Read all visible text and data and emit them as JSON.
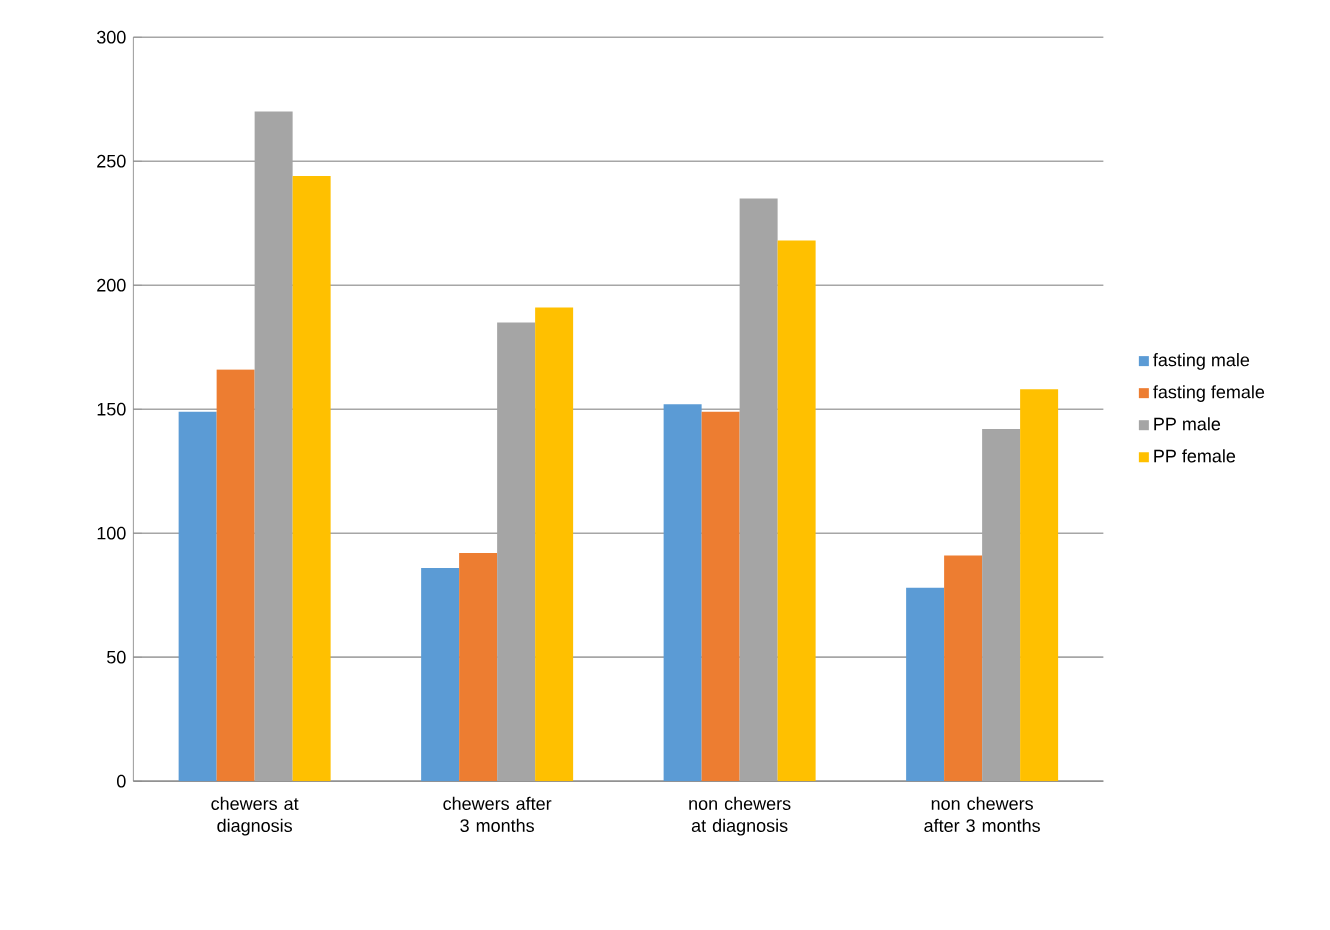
{
  "chart_data": {
    "type": "bar",
    "categories": [
      "chewers at diagnosis",
      "chewers after 3 months",
      "non chewers at diagnosis",
      "non chewers after 3 months"
    ],
    "series": [
      {
        "name": "fasting male",
        "color": "#5b9bd5",
        "values": [
          149,
          86,
          152,
          78
        ]
      },
      {
        "name": "fasting female",
        "color": "#ed7d31",
        "values": [
          166,
          92,
          149,
          91
        ]
      },
      {
        "name": "PP male",
        "color": "#a5a5a5",
        "values": [
          270,
          185,
          235,
          142
        ]
      },
      {
        "name": "PP female",
        "color": "#ffc000",
        "values": [
          244,
          191,
          218,
          158
        ]
      }
    ],
    "ylim": [
      0,
      300
    ],
    "yticks": [
      0,
      50,
      100,
      150,
      200,
      250,
      300
    ],
    "grid": "y",
    "legend": "right"
  }
}
